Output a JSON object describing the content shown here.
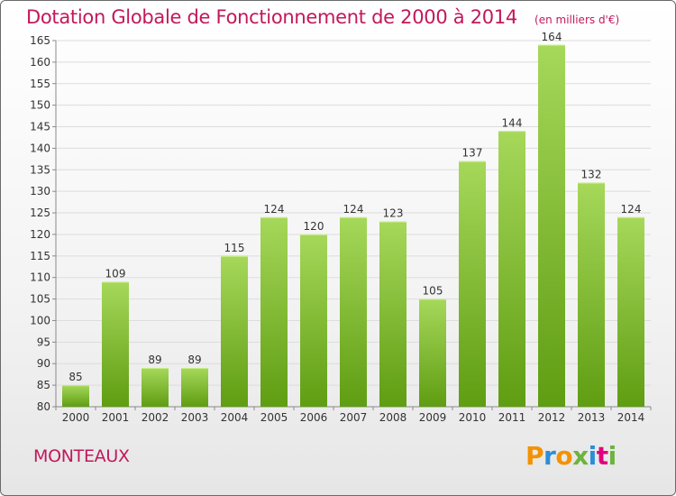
{
  "header": {
    "title": "Dotation Globale de Fonctionnement de 2000 à 2014",
    "unit": "(en milliers d'€)"
  },
  "footer": {
    "commune": "MONTEAUX",
    "logo": "Proxiti"
  },
  "colors": {
    "title": "#c2185b",
    "bar_top": "#a6d85a",
    "bar_bottom": "#5f9d12",
    "grid": "#dcdcdc",
    "axis": "#8a8a8a",
    "logo_letters": [
      "#f39200",
      "#2a8fd6",
      "#f39200",
      "#6cb33f",
      "#2a8fd6",
      "#e3007e",
      "#6cb33f"
    ]
  },
  "chart_data": {
    "type": "bar",
    "title": "Dotation Globale de Fonctionnement de 2000 à 2014",
    "subtitle": "(en milliers d'€)",
    "xlabel": "",
    "ylabel": "",
    "categories": [
      "2000",
      "2001",
      "2002",
      "2003",
      "2004",
      "2005",
      "2006",
      "2007",
      "2008",
      "2009",
      "2010",
      "2011",
      "2012",
      "2013",
      "2014"
    ],
    "values": [
      85,
      109,
      89,
      89,
      115,
      124,
      120,
      124,
      123,
      105,
      137,
      144,
      164,
      132,
      124
    ],
    "ylim": [
      80,
      165
    ],
    "yticks": [
      80,
      85,
      90,
      95,
      100,
      105,
      110,
      115,
      120,
      125,
      130,
      135,
      140,
      145,
      150,
      155,
      160,
      165
    ],
    "grid": true,
    "legend": "none"
  }
}
